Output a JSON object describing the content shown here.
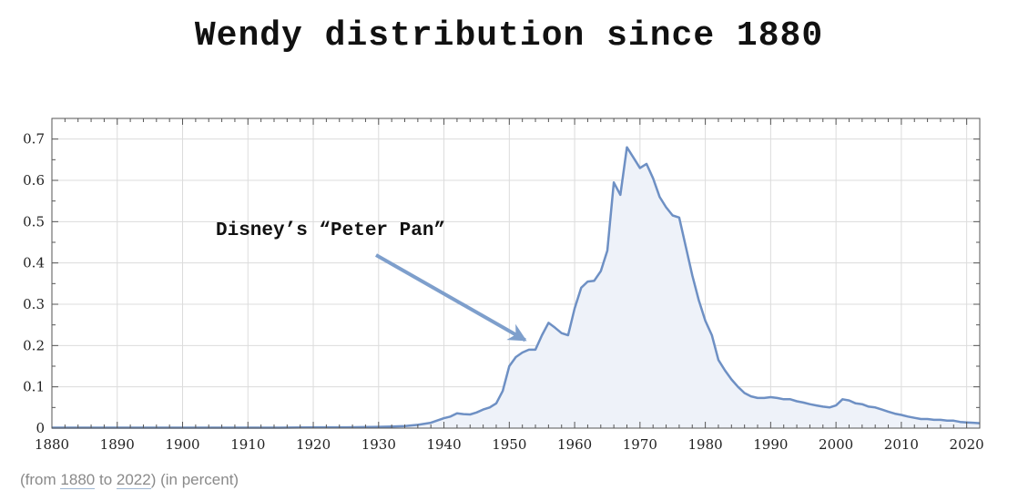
{
  "chart_data": {
    "type": "area",
    "title": "Wendy distribution since 1880",
    "xlabel": "",
    "ylabel": "",
    "xlim": [
      1880,
      2022
    ],
    "ylim": [
      0,
      0.75
    ],
    "x_ticks": [
      1880,
      1890,
      1900,
      1910,
      1920,
      1930,
      1940,
      1950,
      1960,
      1970,
      1980,
      1990,
      2000,
      2010,
      2020
    ],
    "y_ticks": [
      0,
      0.1,
      0.2,
      0.3,
      0.4,
      0.5,
      0.6,
      0.7
    ],
    "y_tick_labels": [
      "0",
      "0.1",
      "0.2",
      "0.3",
      "0.4",
      "0.5",
      "0.6",
      "0.7"
    ],
    "grid": true,
    "line_color": "#6e90c4",
    "fill_color": "#eef2f9",
    "annotation": {
      "text": "Disney’s “Peter Pan”",
      "target_year": 1953,
      "target_value": 0.2
    },
    "series": [
      {
        "x": [
          1880,
          1885,
          1890,
          1895,
          1900,
          1905,
          1910,
          1915,
          1920,
          1925,
          1930,
          1932,
          1934,
          1936,
          1938,
          1940,
          1941,
          1942,
          1943,
          1944,
          1945,
          1946,
          1947,
          1948,
          1949,
          1950,
          1951,
          1952,
          1953,
          1954,
          1955,
          1956,
          1957,
          1958,
          1959,
          1960,
          1961,
          1962,
          1963,
          1964,
          1965,
          1966,
          1967,
          1968,
          1969,
          1970,
          1971,
          1972,
          1973,
          1974,
          1975,
          1976,
          1977,
          1978,
          1979,
          1980,
          1981,
          1982,
          1983,
          1984,
          1985,
          1986,
          1987,
          1988,
          1989,
          1990,
          1991,
          1992,
          1993,
          1994,
          1995,
          1996,
          1997,
          1998,
          1999,
          2000,
          2001,
          2002,
          2003,
          2004,
          2005,
          2006,
          2007,
          2008,
          2009,
          2010,
          2011,
          2012,
          2013,
          2014,
          2015,
          2016,
          2017,
          2018,
          2019,
          2020,
          2021,
          2022
        ],
        "values": [
          0.001,
          0.001,
          0.001,
          0.001,
          0.001,
          0.001,
          0.001,
          0.001,
          0.002,
          0.002,
          0.003,
          0.004,
          0.005,
          0.008,
          0.013,
          0.024,
          0.028,
          0.036,
          0.034,
          0.033,
          0.038,
          0.045,
          0.05,
          0.06,
          0.09,
          0.15,
          0.172,
          0.183,
          0.19,
          0.19,
          0.225,
          0.255,
          0.243,
          0.23,
          0.225,
          0.29,
          0.34,
          0.355,
          0.357,
          0.38,
          0.43,
          0.595,
          0.565,
          0.68,
          0.655,
          0.63,
          0.64,
          0.605,
          0.56,
          0.535,
          0.515,
          0.51,
          0.44,
          0.37,
          0.31,
          0.26,
          0.225,
          0.165,
          0.14,
          0.118,
          0.1,
          0.085,
          0.077,
          0.073,
          0.073,
          0.075,
          0.073,
          0.07,
          0.07,
          0.065,
          0.062,
          0.058,
          0.055,
          0.052,
          0.05,
          0.055,
          0.07,
          0.067,
          0.06,
          0.058,
          0.052,
          0.05,
          0.045,
          0.04,
          0.035,
          0.032,
          0.028,
          0.025,
          0.022,
          0.022,
          0.02,
          0.02,
          0.018,
          0.018,
          0.015,
          0.014,
          0.013,
          0.012
        ]
      }
    ]
  },
  "footer": {
    "prefix": "(from",
    "from_year": "1880",
    "to_word": "to",
    "to_year": "2022",
    "suffix": ")  (in percent)"
  }
}
